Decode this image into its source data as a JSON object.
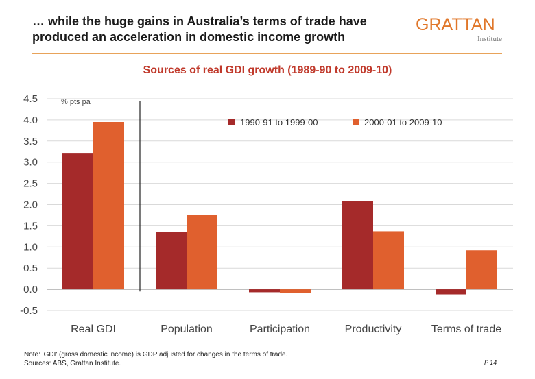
{
  "header": {
    "title_line1": "… while the huge gains in Australia’s terms of trade have",
    "title_line2": "produced an acceleration in domestic income growth",
    "logo_main": "GRATTAN",
    "logo_sub": "Institute"
  },
  "chart_data": {
    "type": "bar",
    "title": "Sources of real GDI growth (1989-90 to 2009-10)",
    "ylabel": "% pts pa",
    "ylim": [
      -0.5,
      4.5
    ],
    "yticks": [
      "-0.5",
      "0.0",
      "0.5",
      "1.0",
      "1.5",
      "2.0",
      "2.5",
      "3.0",
      "3.5",
      "4.0",
      "4.5"
    ],
    "grid": true,
    "legend_position": "top-right",
    "categories": [
      "Real GDI",
      "Population",
      "Participation",
      "Productivity",
      "Terms of trade"
    ],
    "series": [
      {
        "name": "1990-91 to 1999-00",
        "color": "#a52a2a",
        "values": [
          3.22,
          1.35,
          -0.07,
          2.08,
          -0.12
        ]
      },
      {
        "name": "2000-01 to 2009-10",
        "color": "#e0602e",
        "values": [
          3.95,
          1.75,
          -0.09,
          1.37,
          0.92
        ]
      }
    ]
  },
  "footer": {
    "note_line1": "Note: 'GDI' (gross domestic income) is GDP adjusted for changes in the terms of trade.",
    "note_line2": "Sources: ABS, Grattan Institute.",
    "page": "P 14"
  }
}
